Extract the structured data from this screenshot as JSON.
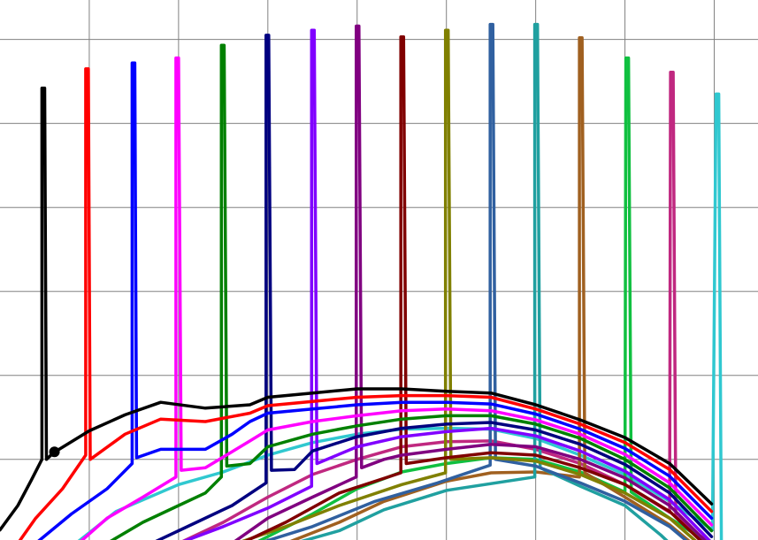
{
  "chart_data": {
    "type": "line",
    "title": "",
    "xlabel": "",
    "ylabel": "",
    "xlim": [
      0,
      8.49
    ],
    "ylim": [
      0.04,
      6.47
    ],
    "grid": true,
    "grid_color": "#808080",
    "x_grid": [
      1,
      2,
      3,
      4,
      5,
      6,
      7,
      8
    ],
    "y_grid": [
      1,
      2,
      3,
      4,
      5,
      6
    ],
    "marker": {
      "x": 0.61,
      "y": 1.09,
      "color": "#000000"
    },
    "series": [
      {
        "color": "#000000",
        "points": [
          [
            0,
            0.16
          ],
          [
            0.2,
            0.45
          ],
          [
            0.35,
            0.75
          ],
          [
            0.47,
            1.0
          ],
          [
            0.47,
            5.42
          ],
          [
            0.5,
            5.42
          ],
          [
            0.52,
            1.0
          ],
          [
            0.6,
            1.08
          ],
          [
            1.0,
            1.34
          ],
          [
            1.4,
            1.53
          ],
          [
            1.8,
            1.68
          ],
          [
            2.3,
            1.61
          ],
          [
            2.8,
            1.65
          ],
          [
            3.0,
            1.74
          ],
          [
            3.5,
            1.79
          ],
          [
            4.0,
            1.84
          ],
          [
            4.5,
            1.84
          ],
          [
            5.0,
            1.81
          ],
          [
            5.5,
            1.79
          ],
          [
            6.0,
            1.65
          ],
          [
            6.5,
            1.47
          ],
          [
            7.0,
            1.26
          ],
          [
            7.5,
            0.95
          ],
          [
            7.97,
            0.47
          ]
        ]
      },
      {
        "color": "#ff0000",
        "points": [
          [
            0.2,
            0.0
          ],
          [
            0.4,
            0.3
          ],
          [
            0.7,
            0.65
          ],
          [
            0.96,
            1.05
          ],
          [
            0.96,
            5.65
          ],
          [
            0.99,
            5.65
          ],
          [
            1.01,
            1.0
          ],
          [
            1.4,
            1.3
          ],
          [
            1.8,
            1.48
          ],
          [
            2.3,
            1.45
          ],
          [
            2.8,
            1.55
          ],
          [
            3.0,
            1.64
          ],
          [
            3.5,
            1.69
          ],
          [
            4.0,
            1.74
          ],
          [
            4.5,
            1.76
          ],
          [
            5.0,
            1.76
          ],
          [
            5.5,
            1.74
          ],
          [
            6.0,
            1.6
          ],
          [
            6.5,
            1.42
          ],
          [
            7.0,
            1.2
          ],
          [
            7.5,
            0.88
          ],
          [
            7.97,
            0.38
          ]
        ]
      },
      {
        "color": "#0000ff",
        "points": [
          [
            0.4,
            0
          ],
          [
            0.8,
            0.35
          ],
          [
            1.2,
            0.65
          ],
          [
            1.48,
            0.95
          ],
          [
            1.48,
            5.72
          ],
          [
            1.51,
            5.72
          ],
          [
            1.53,
            1.02
          ],
          [
            1.8,
            1.12
          ],
          [
            2.3,
            1.12
          ],
          [
            2.6,
            1.3
          ],
          [
            2.8,
            1.45
          ],
          [
            3.0,
            1.55
          ],
          [
            3.5,
            1.6
          ],
          [
            4.0,
            1.65
          ],
          [
            4.5,
            1.68
          ],
          [
            5.0,
            1.68
          ],
          [
            5.5,
            1.66
          ],
          [
            6.0,
            1.54
          ],
          [
            6.5,
            1.36
          ],
          [
            7.0,
            1.13
          ],
          [
            7.5,
            0.8
          ],
          [
            7.97,
            0.3
          ]
        ]
      },
      {
        "color": "#ff00ff",
        "points": [
          [
            0.88,
            0
          ],
          [
            1.2,
            0.3
          ],
          [
            1.6,
            0.55
          ],
          [
            1.97,
            0.79
          ],
          [
            1.97,
            5.78
          ],
          [
            2.0,
            5.78
          ],
          [
            2.03,
            0.87
          ],
          [
            2.3,
            0.9
          ],
          [
            2.8,
            1.22
          ],
          [
            3.0,
            1.35
          ],
          [
            3.5,
            1.45
          ],
          [
            4.0,
            1.52
          ],
          [
            4.5,
            1.58
          ],
          [
            5.0,
            1.6
          ],
          [
            5.5,
            1.58
          ],
          [
            6.0,
            1.47
          ],
          [
            6.5,
            1.3
          ],
          [
            7.0,
            1.06
          ],
          [
            7.5,
            0.72
          ],
          [
            7.97,
            0.22
          ]
        ]
      },
      {
        "color": "#008000",
        "points": [
          [
            1.2,
            0
          ],
          [
            1.6,
            0.25
          ],
          [
            2.0,
            0.45
          ],
          [
            2.3,
            0.6
          ],
          [
            2.48,
            0.79
          ],
          [
            2.48,
            5.93
          ],
          [
            2.51,
            5.93
          ],
          [
            2.54,
            0.92
          ],
          [
            2.8,
            0.95
          ],
          [
            3.0,
            1.15
          ],
          [
            3.5,
            1.3
          ],
          [
            4.0,
            1.4
          ],
          [
            4.5,
            1.48
          ],
          [
            5.0,
            1.52
          ],
          [
            5.5,
            1.52
          ],
          [
            6.0,
            1.42
          ],
          [
            6.5,
            1.25
          ],
          [
            7.0,
            1.0
          ],
          [
            7.5,
            0.66
          ],
          [
            7.97,
            0.15
          ]
        ]
      },
      {
        "color": "#000080",
        "points": [
          [
            1.7,
            0
          ],
          [
            2.2,
            0.25
          ],
          [
            2.6,
            0.45
          ],
          [
            2.98,
            0.72
          ],
          [
            2.98,
            6.05
          ],
          [
            3.01,
            6.05
          ],
          [
            3.04,
            0.87
          ],
          [
            3.3,
            0.88
          ],
          [
            3.5,
            1.1
          ],
          [
            4.0,
            1.27
          ],
          [
            4.5,
            1.37
          ],
          [
            5.0,
            1.42
          ],
          [
            5.5,
            1.44
          ],
          [
            6.0,
            1.35
          ],
          [
            6.5,
            1.18
          ],
          [
            7.0,
            0.94
          ],
          [
            7.5,
            0.6
          ],
          [
            7.97,
            0.08
          ]
        ]
      },
      {
        "color": "#8000ff",
        "points": [
          [
            2.0,
            0
          ],
          [
            2.5,
            0.2
          ],
          [
            3.0,
            0.42
          ],
          [
            3.49,
            0.68
          ],
          [
            3.49,
            6.11
          ],
          [
            3.52,
            6.11
          ],
          [
            3.55,
            0.95
          ],
          [
            4.0,
            1.15
          ],
          [
            4.5,
            1.27
          ],
          [
            5.0,
            1.33
          ],
          [
            5.5,
            1.37
          ],
          [
            6.0,
            1.28
          ],
          [
            6.5,
            1.1
          ],
          [
            7.0,
            0.86
          ],
          [
            7.5,
            0.52
          ],
          [
            7.95,
            0.03
          ]
        ]
      },
      {
        "color": "#800080",
        "points": [
          [
            2.6,
            0
          ],
          [
            3.0,
            0.3
          ],
          [
            3.5,
            0.55
          ],
          [
            3.99,
            0.79
          ],
          [
            3.99,
            6.16
          ],
          [
            4.02,
            6.16
          ],
          [
            4.05,
            0.9
          ],
          [
            4.3,
            1.0
          ],
          [
            4.5,
            1.05
          ],
          [
            5.0,
            1.12
          ],
          [
            5.5,
            1.18
          ],
          [
            6.0,
            1.15
          ],
          [
            6.5,
            1.0
          ],
          [
            7.0,
            0.78
          ],
          [
            7.5,
            0.45
          ],
          [
            7.9,
            0.03
          ]
        ]
      },
      {
        "color": "#800000",
        "points": [
          [
            2.7,
            0
          ],
          [
            3.2,
            0.25
          ],
          [
            3.8,
            0.6
          ],
          [
            4.49,
            0.84
          ],
          [
            4.49,
            6.03
          ],
          [
            4.52,
            6.03
          ],
          [
            4.55,
            0.95
          ],
          [
            5.0,
            1.02
          ],
          [
            5.5,
            1.08
          ],
          [
            6.0,
            1.05
          ],
          [
            6.5,
            0.9
          ],
          [
            7.0,
            0.7
          ],
          [
            7.5,
            0.38
          ],
          [
            7.85,
            0.03
          ]
        ]
      },
      {
        "color": "#808000",
        "points": [
          [
            2.65,
            0
          ],
          [
            3.2,
            0.2
          ],
          [
            3.8,
            0.45
          ],
          [
            4.5,
            0.7
          ],
          [
            4.99,
            0.84
          ],
          [
            4.99,
            6.11
          ],
          [
            5.02,
            6.11
          ],
          [
            5.05,
            1.0
          ],
          [
            5.5,
            1.02
          ],
          [
            6.0,
            0.98
          ],
          [
            6.5,
            0.82
          ],
          [
            7.0,
            0.6
          ],
          [
            7.5,
            0.3
          ],
          [
            7.8,
            0.02
          ]
        ]
      },
      {
        "color": "#3060a0",
        "points": [
          [
            2.9,
            0
          ],
          [
            3.5,
            0.2
          ],
          [
            4.2,
            0.5
          ],
          [
            4.9,
            0.72
          ],
          [
            5.49,
            0.93
          ],
          [
            5.49,
            6.18
          ],
          [
            5.52,
            6.18
          ],
          [
            5.55,
            1.0
          ],
          [
            6.0,
            0.92
          ],
          [
            6.5,
            0.72
          ],
          [
            7.0,
            0.5
          ],
          [
            7.5,
            0.2
          ],
          [
            7.7,
            0.02
          ]
        ]
      },
      {
        "color": "#20a0a0",
        "points": [
          [
            3.3,
            0
          ],
          [
            3.8,
            0.15
          ],
          [
            4.3,
            0.4
          ],
          [
            5.0,
            0.63
          ],
          [
            5.99,
            0.79
          ],
          [
            5.99,
            6.18
          ],
          [
            6.02,
            6.18
          ],
          [
            6.05,
            0.9
          ],
          [
            6.5,
            0.68
          ],
          [
            7.0,
            0.45
          ],
          [
            7.4,
            0.1
          ],
          [
            7.5,
            0.0
          ]
        ]
      },
      {
        "color": "#a06020",
        "points": [
          [
            3.2,
            0
          ],
          [
            3.8,
            0.25
          ],
          [
            4.3,
            0.5
          ],
          [
            5.0,
            0.74
          ],
          [
            5.5,
            0.84
          ],
          [
            6.0,
            0.85
          ],
          [
            6.49,
            0.79
          ],
          [
            6.49,
            6.02
          ],
          [
            6.52,
            6.02
          ],
          [
            6.55,
            0.84
          ],
          [
            7.0,
            0.55
          ],
          [
            7.5,
            0.22
          ],
          [
            7.75,
            0.0
          ]
        ]
      },
      {
        "color": "#10c040",
        "points": [
          [
            2.85,
            0
          ],
          [
            3.5,
            0.35
          ],
          [
            4.0,
            0.65
          ],
          [
            4.5,
            0.85
          ],
          [
            5.0,
            0.95
          ],
          [
            5.5,
            1.02
          ],
          [
            6.0,
            1.0
          ],
          [
            6.5,
            0.85
          ],
          [
            7.0,
            0.61
          ],
          [
            7.01,
            5.78
          ],
          [
            7.04,
            5.78
          ],
          [
            7.07,
            0.61
          ],
          [
            7.5,
            0.3
          ],
          [
            7.95,
            0.0
          ]
        ]
      },
      {
        "color": "#c02880",
        "points": [
          [
            2.0,
            0
          ],
          [
            2.5,
            0.25
          ],
          [
            3.0,
            0.55
          ],
          [
            3.5,
            0.82
          ],
          [
            4.0,
            1.0
          ],
          [
            4.5,
            1.15
          ],
          [
            5.0,
            1.21
          ],
          [
            5.5,
            1.22
          ],
          [
            6.0,
            1.12
          ],
          [
            6.5,
            0.95
          ],
          [
            7.0,
            0.7
          ],
          [
            7.5,
            0.37
          ],
          [
            7.51,
            5.61
          ],
          [
            7.54,
            5.61
          ],
          [
            7.57,
            0.32
          ],
          [
            7.95,
            0.0
          ]
        ]
      },
      {
        "color": "#30c8d0",
        "points": [
          [
            0.85,
            0
          ],
          [
            1.3,
            0.38
          ],
          [
            2.0,
            0.7
          ],
          [
            2.5,
            0.85
          ],
          [
            3.0,
            1.05
          ],
          [
            3.5,
            1.2
          ],
          [
            4.0,
            1.3
          ],
          [
            4.5,
            1.36
          ],
          [
            5.0,
            1.37
          ],
          [
            5.5,
            1.36
          ],
          [
            6.0,
            1.25
          ],
          [
            6.5,
            1.05
          ],
          [
            7.0,
            0.82
          ],
          [
            7.5,
            0.5
          ],
          [
            7.98,
            0.16
          ],
          [
            8.02,
            5.35
          ],
          [
            8.05,
            5.35
          ],
          [
            8.08,
            0.0
          ]
        ]
      }
    ]
  }
}
